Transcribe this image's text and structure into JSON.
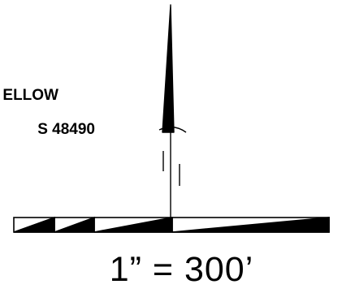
{
  "labels": {
    "line_1": "ELLOW",
    "line_2": "S  48490"
  },
  "scale": {
    "text": "1”  =  300’"
  },
  "colors": {
    "ink": "#000000",
    "paper": "#ffffff"
  }
}
